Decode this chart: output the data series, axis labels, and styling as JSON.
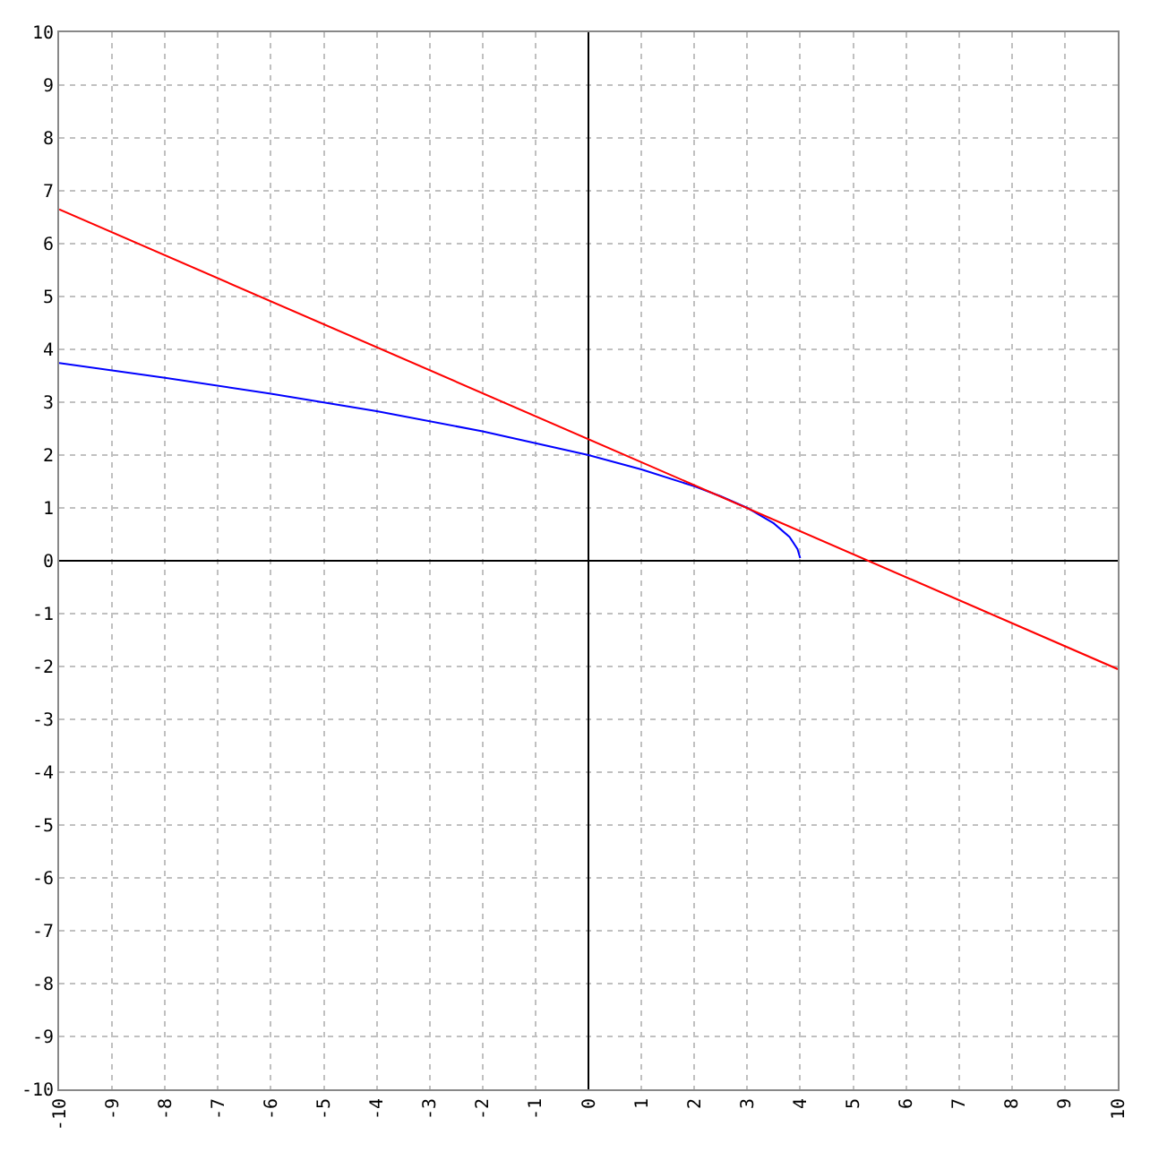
{
  "chart_data": {
    "type": "line",
    "series": [
      {
        "color": "#0000ff",
        "x": [
          -10,
          -8,
          -6,
          -4,
          -2,
          0,
          1,
          2,
          2.5,
          3,
          3.5,
          3.8,
          3.95,
          4
        ],
        "values": [
          3.74,
          3.46,
          3.16,
          2.83,
          2.45,
          2,
          1.73,
          1.41,
          1.22,
          1,
          0.71,
          0.45,
          0.22,
          0.05
        ]
      },
      {
        "color": "#ff0000",
        "x": [
          -10,
          10
        ],
        "values": [
          6.65,
          -2.05
        ]
      }
    ],
    "xlim": [
      -10,
      10
    ],
    "ylim": [
      -10,
      10
    ],
    "xticks": [
      -10,
      -9,
      -8,
      -7,
      -6,
      -5,
      -4,
      -3,
      -2,
      -1,
      0,
      1,
      2,
      3,
      4,
      5,
      6,
      7,
      8,
      9,
      10
    ],
    "yticks": [
      -10,
      -9,
      -8,
      -7,
      -6,
      -5,
      -4,
      -3,
      -2,
      -1,
      0,
      1,
      2,
      3,
      4,
      5,
      6,
      7,
      8,
      9,
      10
    ],
    "grid": true,
    "marker": "none",
    "line_style": "solid"
  }
}
